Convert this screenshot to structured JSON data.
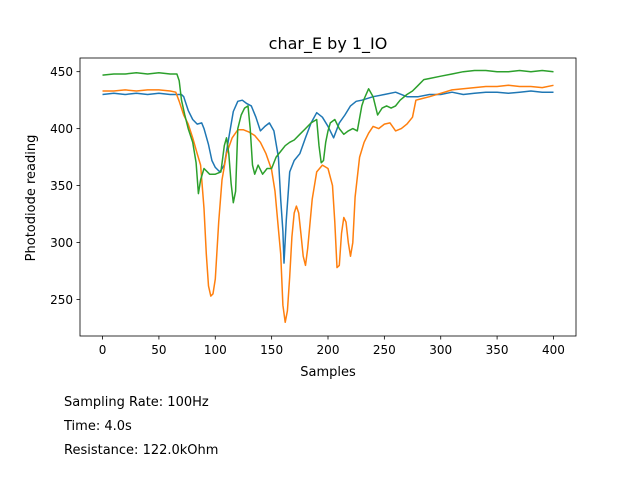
{
  "chart_data": {
    "type": "line",
    "title": "char_E by 1_IO",
    "xlabel": "Samples",
    "ylabel": "Photodiode reading",
    "xlim": [
      -20,
      420
    ],
    "ylim": [
      218,
      462
    ],
    "xticks": [
      0,
      50,
      100,
      150,
      200,
      250,
      300,
      350,
      400
    ],
    "yticks": [
      250,
      300,
      350,
      400,
      450
    ],
    "grid": false,
    "legend": "none",
    "series": [
      {
        "color": "#1f77b4",
        "points": [
          [
            0,
            430
          ],
          [
            10,
            431
          ],
          [
            20,
            430
          ],
          [
            30,
            431
          ],
          [
            40,
            430
          ],
          [
            50,
            431
          ],
          [
            60,
            430
          ],
          [
            70,
            430
          ],
          [
            72,
            428
          ],
          [
            76,
            416
          ],
          [
            80,
            408
          ],
          [
            84,
            404
          ],
          [
            88,
            405
          ],
          [
            90,
            400
          ],
          [
            94,
            386
          ],
          [
            97,
            372
          ],
          [
            100,
            366
          ],
          [
            104,
            362
          ],
          [
            108,
            368
          ],
          [
            112,
            392
          ],
          [
            116,
            415
          ],
          [
            120,
            424
          ],
          [
            124,
            425
          ],
          [
            128,
            422
          ],
          [
            132,
            420
          ],
          [
            136,
            410
          ],
          [
            140,
            398
          ],
          [
            144,
            402
          ],
          [
            148,
            405
          ],
          [
            152,
            398
          ],
          [
            156,
            375
          ],
          [
            158,
            338
          ],
          [
            160,
            310
          ],
          [
            161,
            282
          ],
          [
            163,
            320
          ],
          [
            166,
            362
          ],
          [
            170,
            372
          ],
          [
            175,
            378
          ],
          [
            180,
            392
          ],
          [
            185,
            405
          ],
          [
            190,
            414
          ],
          [
            195,
            410
          ],
          [
            200,
            402
          ],
          [
            205,
            392
          ],
          [
            210,
            405
          ],
          [
            215,
            412
          ],
          [
            220,
            420
          ],
          [
            225,
            424
          ],
          [
            230,
            425
          ],
          [
            240,
            428
          ],
          [
            250,
            430
          ],
          [
            260,
            432
          ],
          [
            270,
            428
          ],
          [
            280,
            428
          ],
          [
            290,
            430
          ],
          [
            300,
            430
          ],
          [
            310,
            432
          ],
          [
            320,
            430
          ],
          [
            330,
            431
          ],
          [
            340,
            432
          ],
          [
            350,
            432
          ],
          [
            360,
            431
          ],
          [
            370,
            432
          ],
          [
            380,
            433
          ],
          [
            390,
            432
          ],
          [
            400,
            432
          ]
        ]
      },
      {
        "color": "#ff7f0e",
        "points": [
          [
            0,
            433
          ],
          [
            10,
            433
          ],
          [
            20,
            434
          ],
          [
            30,
            433
          ],
          [
            40,
            434
          ],
          [
            50,
            434
          ],
          [
            60,
            433
          ],
          [
            65,
            432
          ],
          [
            68,
            424
          ],
          [
            72,
            412
          ],
          [
            76,
            404
          ],
          [
            80,
            392
          ],
          [
            84,
            378
          ],
          [
            87,
            368
          ],
          [
            90,
            330
          ],
          [
            92,
            290
          ],
          [
            94,
            262
          ],
          [
            96,
            253
          ],
          [
            98,
            255
          ],
          [
            100,
            268
          ],
          [
            103,
            318
          ],
          [
            106,
            355
          ],
          [
            110,
            378
          ],
          [
            115,
            392
          ],
          [
            120,
            399
          ],
          [
            125,
            399
          ],
          [
            130,
            397
          ],
          [
            135,
            394
          ],
          [
            140,
            388
          ],
          [
            145,
            378
          ],
          [
            150,
            364
          ],
          [
            153,
            345
          ],
          [
            156,
            312
          ],
          [
            158,
            290
          ],
          [
            160,
            245
          ],
          [
            162,
            230
          ],
          [
            164,
            240
          ],
          [
            166,
            270
          ],
          [
            168,
            305
          ],
          [
            170,
            326
          ],
          [
            172,
            332
          ],
          [
            174,
            326
          ],
          [
            176,
            308
          ],
          [
            178,
            288
          ],
          [
            180,
            280
          ],
          [
            182,
            295
          ],
          [
            186,
            338
          ],
          [
            190,
            362
          ],
          [
            195,
            368
          ],
          [
            200,
            365
          ],
          [
            204,
            350
          ],
          [
            206,
            318
          ],
          [
            208,
            278
          ],
          [
            210,
            280
          ],
          [
            212,
            308
          ],
          [
            214,
            322
          ],
          [
            216,
            318
          ],
          [
            218,
            300
          ],
          [
            220,
            288
          ],
          [
            222,
            300
          ],
          [
            224,
            340
          ],
          [
            228,
            375
          ],
          [
            232,
            388
          ],
          [
            236,
            396
          ],
          [
            240,
            402
          ],
          [
            245,
            400
          ],
          [
            250,
            404
          ],
          [
            255,
            405
          ],
          [
            260,
            398
          ],
          [
            265,
            400
          ],
          [
            270,
            404
          ],
          [
            275,
            410
          ],
          [
            278,
            425
          ],
          [
            282,
            426
          ],
          [
            290,
            428
          ],
          [
            300,
            431
          ],
          [
            310,
            434
          ],
          [
            320,
            435
          ],
          [
            330,
            436
          ],
          [
            340,
            437
          ],
          [
            350,
            437
          ],
          [
            360,
            438
          ],
          [
            370,
            437
          ],
          [
            380,
            437
          ],
          [
            390,
            436
          ],
          [
            400,
            438
          ]
        ]
      },
      {
        "color": "#2ca02c",
        "points": [
          [
            0,
            447
          ],
          [
            10,
            448
          ],
          [
            20,
            448
          ],
          [
            30,
            449
          ],
          [
            40,
            448
          ],
          [
            50,
            449
          ],
          [
            60,
            448
          ],
          [
            66,
            448
          ],
          [
            68,
            442
          ],
          [
            70,
            425
          ],
          [
            73,
            412
          ],
          [
            76,
            400
          ],
          [
            80,
            388
          ],
          [
            83,
            370
          ],
          [
            85,
            343
          ],
          [
            87,
            355
          ],
          [
            90,
            365
          ],
          [
            95,
            360
          ],
          [
            100,
            360
          ],
          [
            105,
            362
          ],
          [
            108,
            385
          ],
          [
            110,
            392
          ],
          [
            112,
            378
          ],
          [
            114,
            352
          ],
          [
            116,
            335
          ],
          [
            118,
            345
          ],
          [
            120,
            400
          ],
          [
            123,
            412
          ],
          [
            126,
            418
          ],
          [
            129,
            420
          ],
          [
            131,
            400
          ],
          [
            133,
            368
          ],
          [
            135,
            360
          ],
          [
            138,
            368
          ],
          [
            142,
            360
          ],
          [
            146,
            365
          ],
          [
            150,
            365
          ],
          [
            154,
            375
          ],
          [
            158,
            380
          ],
          [
            162,
            385
          ],
          [
            166,
            388
          ],
          [
            170,
            390
          ],
          [
            175,
            395
          ],
          [
            180,
            400
          ],
          [
            185,
            405
          ],
          [
            190,
            408
          ],
          [
            192,
            385
          ],
          [
            194,
            370
          ],
          [
            196,
            372
          ],
          [
            198,
            388
          ],
          [
            200,
            398
          ],
          [
            202,
            405
          ],
          [
            206,
            408
          ],
          [
            210,
            400
          ],
          [
            214,
            395
          ],
          [
            218,
            398
          ],
          [
            222,
            400
          ],
          [
            226,
            398
          ],
          [
            230,
            420
          ],
          [
            232,
            426
          ],
          [
            236,
            435
          ],
          [
            240,
            428
          ],
          [
            244,
            412
          ],
          [
            248,
            418
          ],
          [
            252,
            420
          ],
          [
            256,
            418
          ],
          [
            260,
            420
          ],
          [
            264,
            425
          ],
          [
            270,
            430
          ],
          [
            275,
            433
          ],
          [
            280,
            438
          ],
          [
            285,
            443
          ],
          [
            290,
            444
          ],
          [
            300,
            446
          ],
          [
            310,
            448
          ],
          [
            320,
            450
          ],
          [
            330,
            451
          ],
          [
            340,
            451
          ],
          [
            350,
            450
          ],
          [
            360,
            450
          ],
          [
            370,
            451
          ],
          [
            380,
            450
          ],
          [
            390,
            451
          ],
          [
            400,
            450
          ]
        ]
      }
    ]
  },
  "info": {
    "sampling_rate": "Sampling Rate: 100Hz",
    "time": "Time: 4.0s",
    "resistance": "Resistance: 122.0kOhm"
  }
}
